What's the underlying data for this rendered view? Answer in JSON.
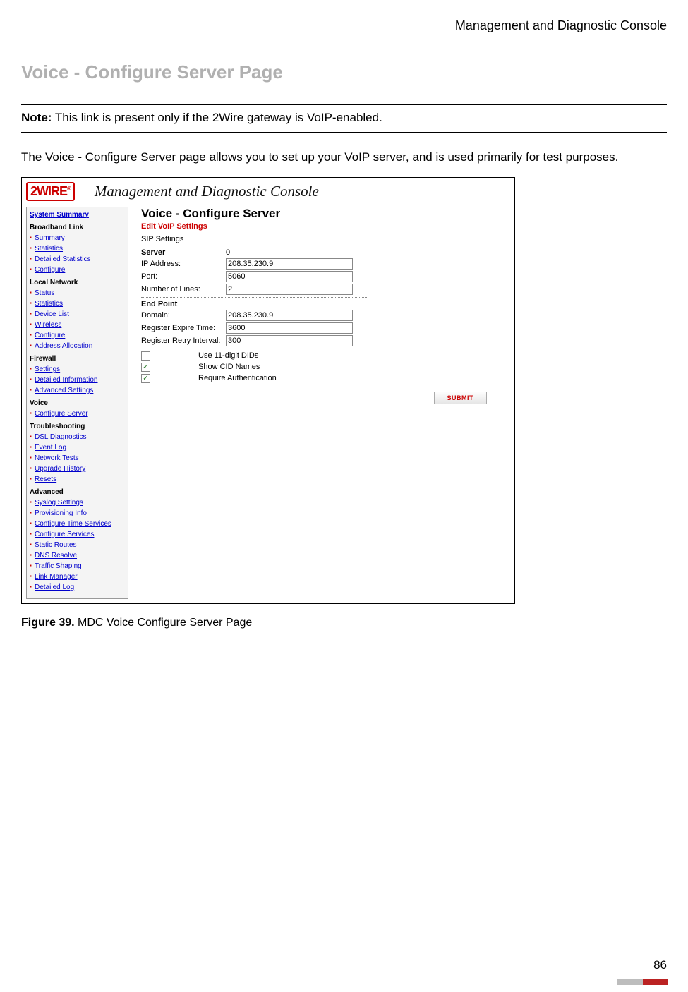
{
  "doc": {
    "header_title": "Management and Diagnostic Console",
    "section_heading": "Voice - Configure Server Page",
    "note_label": "Note:",
    "note_text": " This link is present only if the 2Wire gateway is VoIP-enabled.",
    "body_paragraph": "The Voice - Configure Server page allows you to set up your VoIP server, and is used primarily for test purposes.",
    "figure_label": "Figure 39.",
    "figure_text": " MDC Voice Configure Server Page",
    "page_number": "86"
  },
  "console": {
    "logo_text": "2WIRE",
    "logo_rm": "®",
    "header_title": "Management and Diagnostic Console",
    "main_title": "Voice - Configure Server",
    "edit_sub": "Edit VoIP Settings",
    "sip_label": "SIP Settings",
    "server_section": "Server",
    "server_number": "0",
    "ip_label": "IP Address:",
    "ip_value": "208.35.230.9",
    "port_label": "Port:",
    "port_value": "5060",
    "lines_label": "Number of Lines:",
    "lines_value": "2",
    "endpoint_section": "End Point",
    "domain_label": "Domain:",
    "domain_value": "208.35.230.9",
    "expire_label": "Register Expire Time:",
    "expire_value": "3600",
    "retry_label": "Register Retry Interval:",
    "retry_value": "300",
    "opt1_label": "Use 11-digit DIDs",
    "opt1_checked": "",
    "opt2_label": "Show CID Names",
    "opt2_checked": "✓",
    "opt3_label": "Require Authentication",
    "opt3_checked": "✓",
    "submit_label": "SUBMIT"
  },
  "sidebar": {
    "summary": "System Summary",
    "groups": [
      {
        "title": "Broadband Link",
        "items": [
          "Summary",
          "Statistics",
          "Detailed Statistics",
          "Configure"
        ]
      },
      {
        "title": "Local Network",
        "items": [
          "Status",
          "Statistics",
          "Device List",
          "Wireless",
          "Configure",
          "Address Allocation"
        ]
      },
      {
        "title": "Firewall",
        "items": [
          "Settings",
          "Detailed Information",
          "Advanced Settings"
        ]
      },
      {
        "title": "Voice",
        "items": [
          "Configure Server"
        ]
      },
      {
        "title": "Troubleshooting",
        "items": [
          "DSL Diagnostics",
          "Event Log",
          "Network Tests",
          "Upgrade History",
          "Resets"
        ]
      },
      {
        "title": "Advanced",
        "items": [
          "Syslog Settings",
          "Provisioning Info",
          "Configure Time Services",
          "Configure Services",
          "Static Routes",
          "DNS Resolve",
          "Traffic Shaping",
          "Link Manager",
          "Detailed Log"
        ]
      }
    ]
  },
  "colors": {
    "heading_gray": "#b0b0b0",
    "brand_red": "#c00",
    "link_blue": "#0000cc"
  }
}
